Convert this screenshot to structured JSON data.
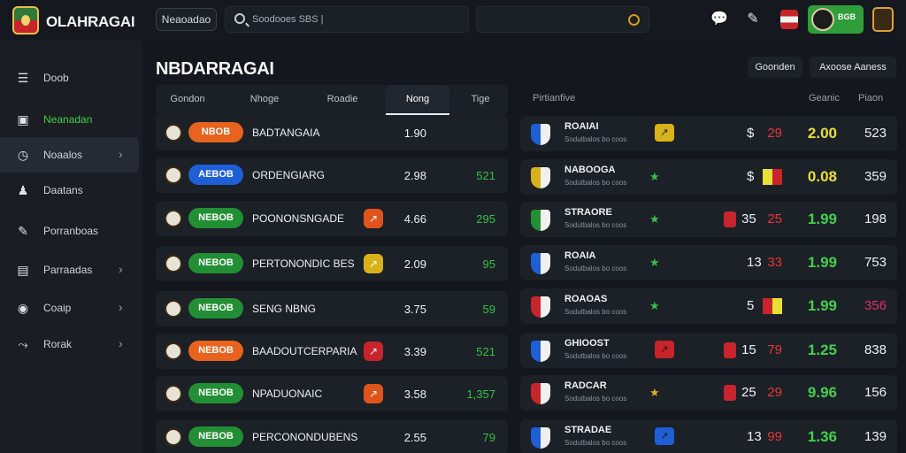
{
  "header": {
    "brand": "OLAHRAGAI",
    "button_label": "Neaoadao",
    "search_text": "Soodooes    SBS |",
    "profile_text": "BGB",
    "page_title": "NBDARRAGAI",
    "right_buttons": [
      "Goonden",
      "Axoose Aaness"
    ]
  },
  "sidebar": {
    "items": [
      {
        "label": "Doob",
        "icon": "list-icon",
        "chevron": false
      },
      {
        "label": "Neanadan",
        "icon": "chart-icon",
        "chevron": false,
        "active": true
      },
      {
        "label": "Noaalos",
        "icon": "clock-icon",
        "chevron": true,
        "hover": true
      },
      {
        "label": "Daatans",
        "icon": "user-icon",
        "chevron": false
      },
      {
        "label": "Porranboas",
        "icon": "edit-icon",
        "chevron": false
      },
      {
        "label": "Parraadas",
        "icon": "book-icon",
        "chevron": true
      },
      {
        "label": "Coaip",
        "icon": "chat-icon",
        "chevron": true
      },
      {
        "label": "Rorak",
        "icon": "trend-icon",
        "chevron": true
      }
    ]
  },
  "tabs": [
    "Gondon",
    "Nhoge",
    "Roadie",
    "Nong",
    "Tige"
  ],
  "selected_tab": "Nong",
  "left_rows": [
    {
      "tag": "NBOB",
      "tag_color": "#e8641e",
      "name": "BADTANGAIA",
      "icon": "",
      "icon_color": "",
      "odd": "1.90",
      "change": ""
    },
    {
      "tag": "AEBOB",
      "tag_color": "#1f5fd6",
      "name": "ORDENGIARG",
      "icon": "",
      "icon_color": "",
      "odd": "2.98",
      "change": "521"
    },
    {
      "tag": "NEBOB",
      "tag_color": "#238f35",
      "name": "POONONSNGADE",
      "icon": "↗",
      "icon_color": "#e0541c",
      "odd": "4.66",
      "change": "295"
    },
    {
      "tag": "NEBOB",
      "tag_color": "#238f35",
      "name": "PERTONONDIC BES",
      "icon": "↗",
      "icon_color": "#d8b21a",
      "odd": "2.09",
      "change": "95"
    },
    {
      "tag": "NEBOB",
      "tag_color": "#238f35",
      "name": "SENG NBNG",
      "icon": "",
      "icon_color": "",
      "odd": "3.75",
      "change": "59"
    },
    {
      "tag": "NEBOB",
      "tag_color": "#e8641e",
      "name": "BAADOUTCERPARIA",
      "icon": "↗",
      "icon_color": "#c8242b",
      "odd": "3.39",
      "change": "521"
    },
    {
      "tag": "NEBOB",
      "tag_color": "#238f35",
      "name": "NPADUONAIC",
      "icon": "↗",
      "icon_color": "#e0541c",
      "odd": "3.58",
      "change": "1,357"
    },
    {
      "tag": "NEBOB",
      "tag_color": "#238f35",
      "name": "PERCONONDUBENS",
      "icon": "",
      "icon_color": "",
      "odd": "2.55",
      "change": "79"
    }
  ],
  "right_panel": {
    "headers": [
      "Pirtianfive",
      "Geanic",
      "Piaon"
    ],
    "rows": [
      {
        "name": "ROAIAI",
        "sub": "Sodutbalos bo coos",
        "marker": "badge",
        "marker_color": "#d8b21a",
        "currency": "$",
        "v1": "29",
        "v2": "2.00",
        "v2_color": "#e8e035",
        "v3": "523"
      },
      {
        "name": "NABOOGA",
        "sub": "Sodutbalos bo coos",
        "marker": "star",
        "marker_color": "#35c145",
        "currency": "$",
        "v1": "",
        "v2": "0.08",
        "v2_color": "#e8e035",
        "v3": "359"
      },
      {
        "name": "STRAORE",
        "sub": "Sodutbalos bo coos",
        "marker": "star",
        "marker_color": "#35c145",
        "currency": "35",
        "v1": "25",
        "v2": "1.99",
        "v2_color": "#3fd14b",
        "v3": "198"
      },
      {
        "name": "ROAIA",
        "sub": "Sodutbalos bo coos",
        "marker": "star",
        "marker_color": "#35c145",
        "currency": "13",
        "v1": "33",
        "v2": "1.99",
        "v2_color": "#3fd14b",
        "v3": "753"
      },
      {
        "name": "ROAOAS",
        "sub": "Sodutbalos bo coos",
        "marker": "star",
        "marker_color": "#35c145",
        "currency": "5",
        "v1": "",
        "v2": "1.99",
        "v2_color": "#3fd14b",
        "v3": "356"
      },
      {
        "name": "GHIOOST",
        "sub": "Sodutbalos bo coos",
        "marker": "badge",
        "marker_color": "#c8242b",
        "currency": "15",
        "v1": "79",
        "v2": "1.25",
        "v2_color": "#3fd14b",
        "v3": "838"
      },
      {
        "name": "RADCAR",
        "sub": "Sodutbalos bo coos",
        "marker": "star",
        "marker_color": "#d8b21a",
        "currency": "25",
        "v1": "29",
        "v2": "9.96",
        "v2_color": "#3fd14b",
        "v3": "156"
      },
      {
        "name": "STRADAE",
        "sub": "Sodutbalos bo coos",
        "marker": "badge",
        "marker_color": "#1f5fd6",
        "currency": "13",
        "v1": "99",
        "v2": "1.36",
        "v2_color": "#3fd14b",
        "v3": "139"
      }
    ]
  },
  "colors": {
    "accent": "#3fd14b",
    "background": "#14171d",
    "panel": "#1c2027"
  }
}
